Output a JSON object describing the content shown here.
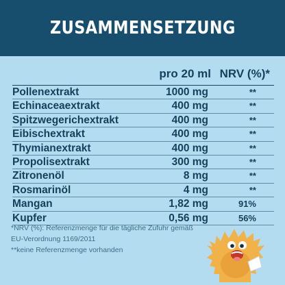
{
  "banner": {
    "title": "ZUSAMMENSETZUNG"
  },
  "table": {
    "col_amount": "pro 20 ml",
    "col_nrv": "NRV (%)*",
    "rows": [
      {
        "name": "Pollenextrakt",
        "amount": "1000 mg",
        "nrv": "**"
      },
      {
        "name": "Echinaceaextrakt",
        "amount": "400  mg",
        "nrv": "**"
      },
      {
        "name": "Spitzwegerichextrakt",
        "amount": "400 mg",
        "nrv": "**"
      },
      {
        "name": "Eibischextrakt",
        "amount": "400 mg",
        "nrv": "**"
      },
      {
        "name": "Thymianextrakt",
        "amount": "400 mg",
        "nrv": "**"
      },
      {
        "name": "Propolisextrakt",
        "amount": "300 mg",
        "nrv": "**"
      },
      {
        "name": "Zitronenöl",
        "amount": "8 mg",
        "nrv": "**"
      },
      {
        "name": "Rosmarinöl",
        "amount": "4 mg",
        "nrv": "**"
      },
      {
        "name": "Mangan",
        "amount": "1,82 mg",
        "nrv": "91%"
      },
      {
        "name": "Kupfer",
        "amount": "0,56 mg",
        "nrv": "56%"
      }
    ]
  },
  "footnotes": {
    "line1": "*NRV (%): Referenzmenge für die tägliche Zufuhr gemäß",
    "line2": "EU-Verordnung 1169/2011",
    "line3": "**keine Referenzmenge vorhanden"
  },
  "mascot": {
    "icon": "monster-mascot-icon",
    "colors": {
      "body": "#f2b24a",
      "shade": "#e3962e",
      "mouth": "#c0392b"
    }
  }
}
